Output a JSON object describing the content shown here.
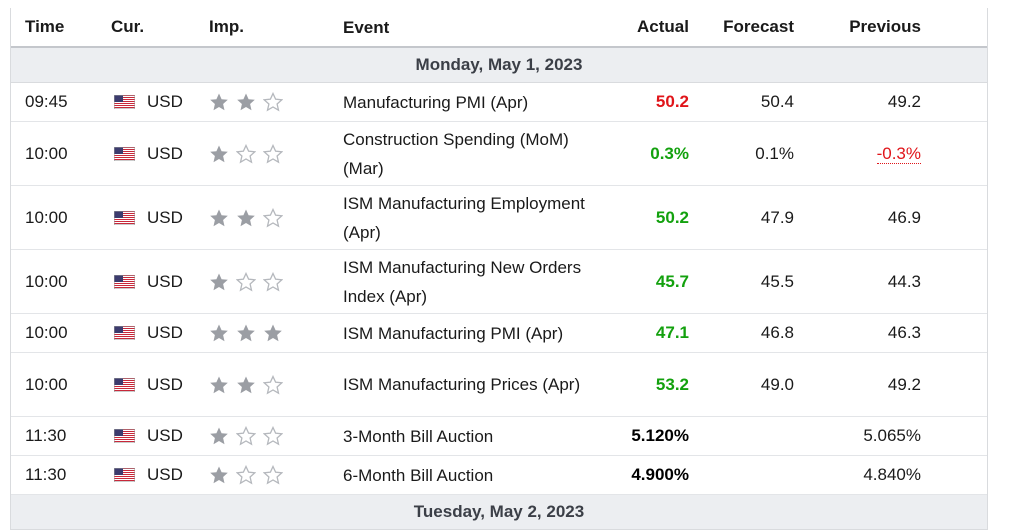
{
  "colors": {
    "positive": "#13a10e",
    "negative": "#e0151a",
    "neutral": "#000000",
    "date_bg": "#eceef1"
  },
  "header": {
    "time": "Time",
    "currency": "Cur.",
    "importance": "Imp.",
    "event": "Event",
    "actual": "Actual",
    "forecast": "Forecast",
    "previous": "Previous"
  },
  "sections": [
    {
      "date": "Monday, May 1, 2023",
      "rows": [
        {
          "time": "09:45",
          "currency": "USD",
          "importance": 2,
          "event": "Manufacturing PMI (Apr)",
          "actual": "50.2",
          "actual_status": "negative",
          "forecast": "50.4",
          "previous": "49.2",
          "previous_status": "neutral"
        },
        {
          "time": "10:00",
          "currency": "USD",
          "importance": 1,
          "event": "Construction Spending (MoM) (Mar)",
          "actual": "0.3%",
          "actual_status": "positive",
          "forecast": "0.1%",
          "previous": "-0.3%",
          "previous_status": "negative"
        },
        {
          "time": "10:00",
          "currency": "USD",
          "importance": 2,
          "event": "ISM Manufacturing Employment (Apr)",
          "actual": "50.2",
          "actual_status": "positive",
          "forecast": "47.9",
          "previous": "46.9",
          "previous_status": "neutral"
        },
        {
          "time": "10:00",
          "currency": "USD",
          "importance": 1,
          "event": "ISM Manufacturing New Orders Index (Apr)",
          "actual": "45.7",
          "actual_status": "positive",
          "forecast": "45.5",
          "previous": "44.3",
          "previous_status": "neutral"
        },
        {
          "time": "10:00",
          "currency": "USD",
          "importance": 3,
          "event": "ISM Manufacturing PMI (Apr)",
          "actual": "47.1",
          "actual_status": "positive",
          "forecast": "46.8",
          "previous": "46.3",
          "previous_status": "neutral"
        },
        {
          "time": "10:00",
          "currency": "USD",
          "importance": 2,
          "event": "ISM Manufacturing Prices (Apr)",
          "actual": "53.2",
          "actual_status": "positive",
          "forecast": "49.0",
          "previous": "49.2",
          "previous_status": "neutral"
        },
        {
          "time": "11:30",
          "currency": "USD",
          "importance": 1,
          "event": "3-Month Bill Auction",
          "actual": "5.120%",
          "actual_status": "neutral",
          "forecast": "",
          "previous": "5.065%",
          "previous_status": "neutral"
        },
        {
          "time": "11:30",
          "currency": "USD",
          "importance": 1,
          "event": "6-Month Bill Auction",
          "actual": "4.900%",
          "actual_status": "neutral",
          "forecast": "",
          "previous": "4.840%",
          "previous_status": "neutral"
        }
      ]
    },
    {
      "date": "Tuesday, May 2, 2023",
      "rows": []
    }
  ]
}
